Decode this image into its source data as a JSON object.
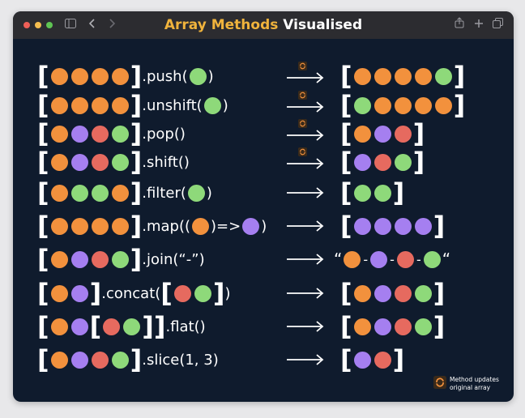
{
  "window": {
    "title_accent": "Array Methods",
    "title_rest": "Visualised",
    "controls": [
      "close",
      "minimize",
      "maximize"
    ],
    "toolbar_icons": [
      "sidebar-icon",
      "back-icon",
      "forward-icon",
      "share-icon",
      "new-tab-icon",
      "tabs-icon"
    ]
  },
  "colors": {
    "orange": "#f2913d",
    "green": "#8ed97a",
    "purple": "#a57ff0",
    "red": "#e66a5f",
    "accent": "#f0b33c",
    "background": "#0f1b2d"
  },
  "rows": [
    {
      "method": ".push(",
      "close": ")",
      "arg_color": "green",
      "mutates": true
    },
    {
      "method": ".unshift(",
      "close": ")",
      "arg_color": "green",
      "mutates": true
    },
    {
      "method": ".pop()",
      "mutates": true
    },
    {
      "method": ".shift()",
      "mutates": true
    },
    {
      "method": ".filter(",
      "close": ")",
      "arg_color": "green",
      "mutates": false
    },
    {
      "method": ".map((",
      "mid": ")=>",
      "close": ")",
      "mutates": false
    },
    {
      "method": ".join(“-”)",
      "result_open": "“",
      "result_close": "“",
      "separator": "-",
      "mutates": false
    },
    {
      "method": ".concat(",
      "close": ")",
      "mutates": false
    },
    {
      "method": ".flat()",
      "mutates": false
    },
    {
      "method": ".slice(1, 3)",
      "mutates": false
    }
  ],
  "legend": {
    "line1": "Method updates",
    "line2": "original array",
    "icon": "sync-icon"
  }
}
